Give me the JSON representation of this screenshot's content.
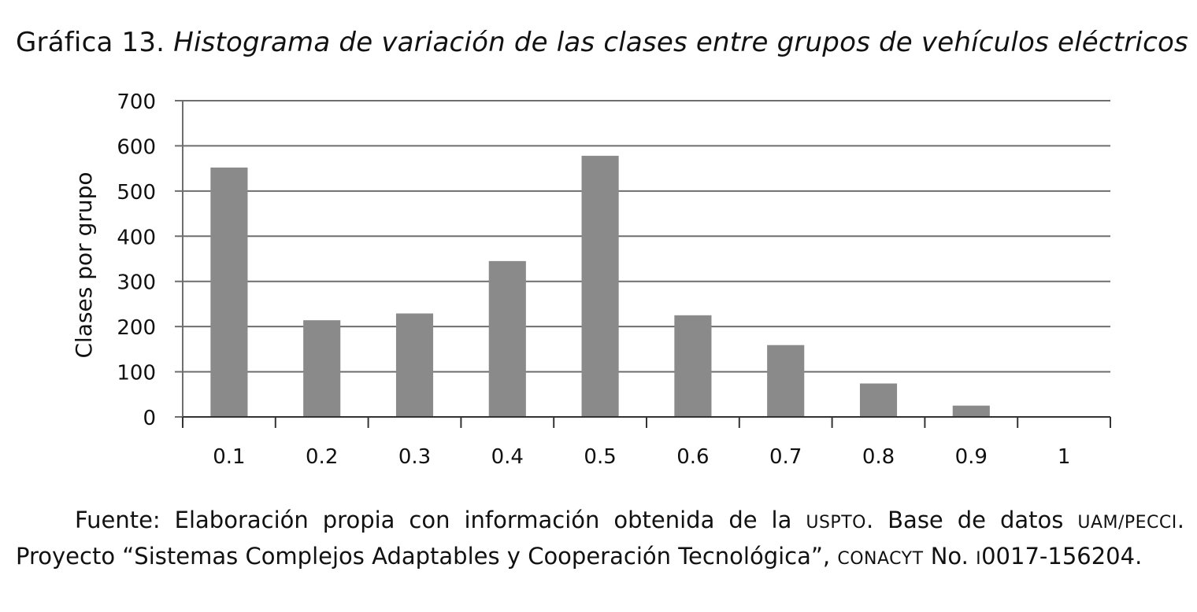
{
  "figure": {
    "label": "Gráfica 13.",
    "title": "Histograma de variación de las clases entre grupos de vehículos eléctricos"
  },
  "source_note": {
    "p1": "Fuente: Elaboración propia con información obtenida de la ",
    "sc1": "USPTO",
    "p2": ". Base de datos ",
    "sc2": "UAM/PECCI",
    "p3": ". Proyecto “Sistemas Complejos Adaptables y Cooperación Tecnológica”, ",
    "sc3": "CONACYT",
    "p4": " No. ",
    "sc4": "I",
    "p5": "0017-156204."
  },
  "chart_data": {
    "type": "bar",
    "categories": [
      "0.1",
      "0.2",
      "0.3",
      "0.4",
      "0.5",
      "0.6",
      "0.7",
      "0.8",
      "0.9",
      "1"
    ],
    "values": [
      552,
      214,
      229,
      345,
      578,
      225,
      159,
      74,
      25,
      0
    ],
    "xlabel": "",
    "ylabel": "Clases por grupo",
    "ylim": [
      0,
      700
    ],
    "yticks": [
      0,
      100,
      200,
      300,
      400,
      500,
      600,
      700
    ],
    "grid": true,
    "bar_color": "#8a8a8a",
    "grid_color": "#6e6e6e"
  }
}
